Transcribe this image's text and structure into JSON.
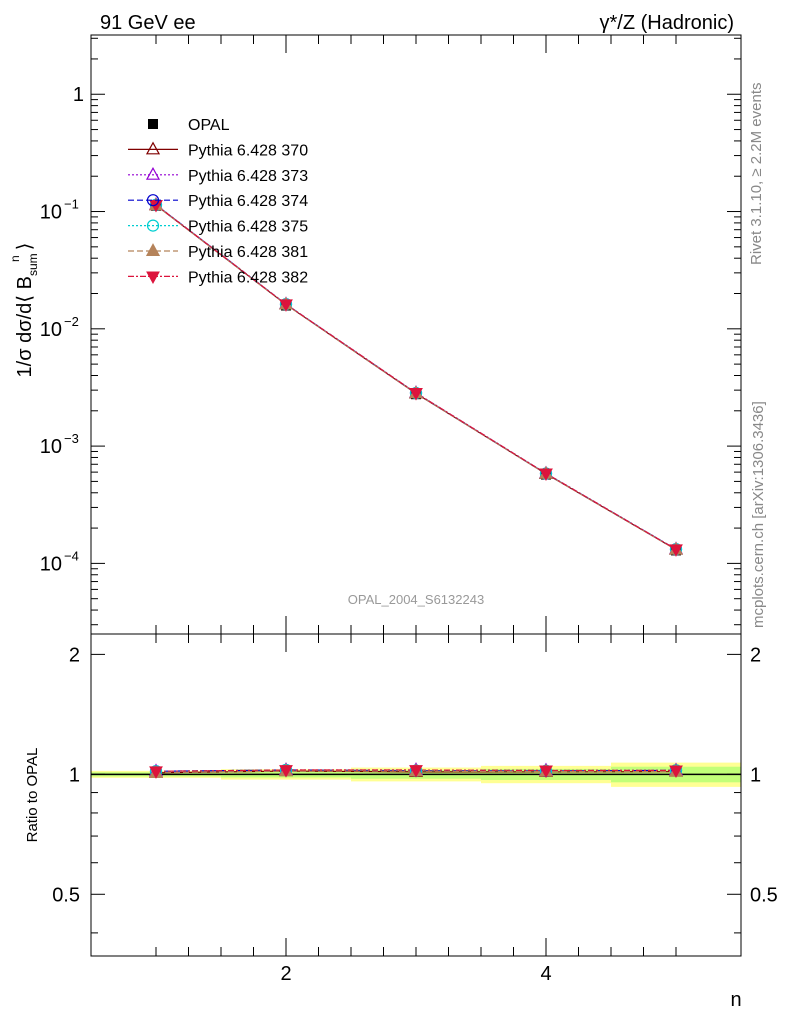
{
  "header": {
    "left_label": "91 GeV ee",
    "right_label": "γ*/Z (Hadronic)"
  },
  "side_text": {
    "rivet": "Rivet 3.1.10, ≥ 2.2M events",
    "mcplots": "mcplots.cern.ch [arXiv:1306.3436]"
  },
  "watermark": "OPAL_2004_S6132243",
  "main_plot": {
    "ylabel": "1/σ dσ/d⟨ B",
    "ylabel_sup": "n",
    "ylabel_sub": "sum",
    "ylabel_close": "⟩",
    "yticks": [
      {
        "base": "1",
        "exp": ""
      },
      {
        "base": "10",
        "exp": "−1"
      },
      {
        "base": "10",
        "exp": "−2"
      },
      {
        "base": "10",
        "exp": "−3"
      },
      {
        "base": "10",
        "exp": "−4"
      }
    ]
  },
  "ratio_plot": {
    "ylabel": "Ratio to OPAL",
    "yticks": [
      "0.5",
      "1",
      "2"
    ]
  },
  "xlabel": "n",
  "xticks": [
    "2",
    "4"
  ],
  "legend": [
    {
      "label": "OPAL",
      "color": "#000000",
      "marker": "square-filled",
      "dash": ""
    },
    {
      "label": "Pythia 6.428 370",
      "color": "#800000",
      "marker": "triangle-open",
      "dash": ""
    },
    {
      "label": "Pythia 6.428 373",
      "color": "#9400d3",
      "marker": "triangle-open",
      "dash": "2,2"
    },
    {
      "label": "Pythia 6.428 374",
      "color": "#0000cd",
      "marker": "circle-open",
      "dash": "6,3"
    },
    {
      "label": "Pythia 6.428 375",
      "color": "#00ced1",
      "marker": "circle-open",
      "dash": "2,2"
    },
    {
      "label": "Pythia 6.428 381",
      "color": "#b5835a",
      "marker": "triangle-filled",
      "dash": "6,3"
    },
    {
      "label": "Pythia 6.428 382",
      "color": "#dc143c",
      "marker": "triangle-down-filled",
      "dash": "6,2,2,2"
    }
  ],
  "chart_data": {
    "type": "line",
    "x": [
      1,
      2,
      3,
      4,
      5
    ],
    "xlim": [
      0.5,
      5.5
    ],
    "ylim_main": [
      2.5e-05,
      3.2
    ],
    "ylog": true,
    "ylim_ratio": [
      0.35,
      2.25
    ],
    "ratio_ylog": true,
    "series": [
      {
        "name": "OPAL",
        "values": [
          0.112,
          0.0158,
          0.00277,
          0.000572,
          0.000129
        ]
      },
      {
        "name": "Pythia 6.428 370",
        "values": [
          0.113,
          0.0161,
          0.00281,
          0.00058,
          0.000131
        ]
      },
      {
        "name": "Pythia 6.428 373",
        "values": [
          0.114,
          0.0162,
          0.00284,
          0.000585,
          0.000132
        ]
      },
      {
        "name": "Pythia 6.428 374",
        "values": [
          0.114,
          0.0162,
          0.00283,
          0.000583,
          0.000132
        ]
      },
      {
        "name": "Pythia 6.428 375",
        "values": [
          0.114,
          0.0162,
          0.00283,
          0.000584,
          0.000132
        ]
      },
      {
        "name": "Pythia 6.428 381",
        "values": [
          0.113,
          0.0161,
          0.00282,
          0.000581,
          0.000131
        ]
      },
      {
        "name": "Pythia 6.428 382",
        "values": [
          0.114,
          0.0162,
          0.00284,
          0.000585,
          0.000132
        ]
      }
    ],
    "ratio_band": {
      "x_edges": [
        0.5,
        1.5,
        2.5,
        3.5,
        4.5,
        5.5
      ],
      "stat_half_width": [
        0.012,
        0.018,
        0.025,
        0.032,
        0.045
      ],
      "total_half_width": [
        0.02,
        0.03,
        0.04,
        0.05,
        0.07
      ]
    }
  }
}
